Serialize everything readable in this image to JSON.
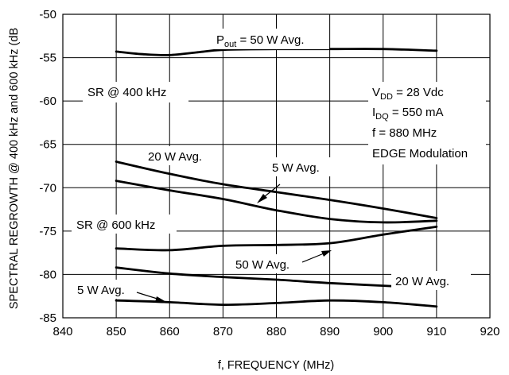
{
  "chart_data": {
    "type": "line",
    "title": "",
    "xlabel": "f, FREQUENCY (MHz)",
    "ylabel": "SPECTRAL REGROWTH @ 400 kHz and 600 kHz (dB",
    "xlim": [
      840,
      920
    ],
    "ylim": [
      -85,
      -50
    ],
    "x_ticks": [
      "840",
      "850",
      "860",
      "870",
      "880",
      "890",
      "900",
      "910",
      "920"
    ],
    "y_ticks": [
      "-50",
      "-55",
      "-60",
      "-65",
      "-70",
      "-75",
      "-80",
      "-85"
    ],
    "grid": true,
    "series": [
      {
        "x": [
          850,
          855,
          860,
          865,
          870,
          880,
          890,
          900,
          910
        ],
        "values": [
          -54.3,
          -54.6,
          -54.7,
          -54.4,
          -54.1,
          -54.0,
          -54.0,
          -54.0,
          -54.2
        ]
      },
      {
        "x": [
          850,
          860,
          870,
          880,
          890,
          900,
          910
        ],
        "values": [
          -67.0,
          -68.4,
          -69.6,
          -70.5,
          -71.4,
          -72.4,
          -73.5
        ]
      },
      {
        "x": [
          850,
          860,
          870,
          880,
          890,
          900,
          910
        ],
        "values": [
          -69.2,
          -70.3,
          -71.3,
          -72.6,
          -73.6,
          -74.0,
          -73.8
        ]
      },
      {
        "x": [
          850,
          860,
          870,
          880,
          890,
          900,
          910
        ],
        "values": [
          -77.0,
          -77.2,
          -76.7,
          -76.6,
          -76.4,
          -75.4,
          -74.5
        ]
      },
      {
        "x": [
          850,
          860,
          870,
          880,
          890,
          900,
          910
        ],
        "values": [
          -79.2,
          -79.9,
          -80.3,
          -80.6,
          -81.0,
          -81.3,
          -81.6
        ]
      },
      {
        "x": [
          850,
          860,
          870,
          880,
          890,
          900,
          910
        ],
        "values": [
          -83.0,
          -83.2,
          -83.5,
          -83.3,
          -83.0,
          -83.2,
          -83.7
        ]
      }
    ],
    "annotations": {
      "pout_50": {
        "prefix": "P",
        "sub": "out",
        "suffix": " = 50 W Avg."
      },
      "sr400": "SR @ 400 kHz",
      "sr600": "SR @ 600 kHz",
      "vdd": {
        "prefix": "V",
        "sub": "DD",
        "suffix": " = 28 Vdc"
      },
      "idq": {
        "prefix": "I",
        "sub": "DQ",
        "suffix": " = 550 mA"
      },
      "freq": "f = 880 MHz",
      "modulation": "EDGE Modulation",
      "w20_upper": "20 W Avg.",
      "w5_upper": "5 W Avg.",
      "w50_lower": "50 W Avg.",
      "w20_lower": "20 W Avg.",
      "w5_lower": "5 W Avg."
    }
  }
}
